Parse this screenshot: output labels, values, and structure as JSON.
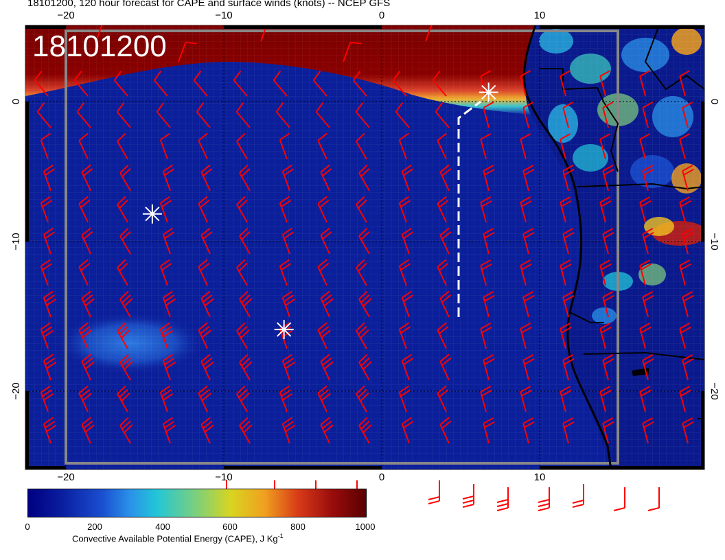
{
  "title": "18101200, 120 hour forecast for CAPE and surface winds (knots) -- NCEP GFS",
  "timestamp_stamp": "18101200",
  "axes": {
    "x_ticks": [
      "−20",
      "−10",
      "0",
      "10"
    ],
    "y_ticks": [
      "0",
      "−10",
      "−20"
    ],
    "x_range": [
      -22.5,
      20.3
    ],
    "y_range": [
      -24.5,
      4.7
    ]
  },
  "colorbar": {
    "ticks": [
      "0",
      "200",
      "400",
      "600",
      "800",
      "1000"
    ],
    "label": "Convective Available Potential Energy (CAPE), J Kg",
    "label_sup": "-1",
    "range": [
      0,
      1000
    ]
  },
  "markers": [
    {
      "name": "star-west",
      "lon": -14.5,
      "lat": -7.7
    },
    {
      "name": "star-south",
      "lon": -6.2,
      "lat": -15.3
    },
    {
      "name": "star-north",
      "lon": 6.7,
      "lat": 0.3
    }
  ],
  "colors": {
    "ocean": "#0b1f9a",
    "ocean_deep": "#09188a",
    "itcz_high": "#7a0000",
    "land_low": "#0a1a8c",
    "wind_barb": "#ff0000",
    "marker": "#ffffff",
    "coastline": "#000000"
  }
}
